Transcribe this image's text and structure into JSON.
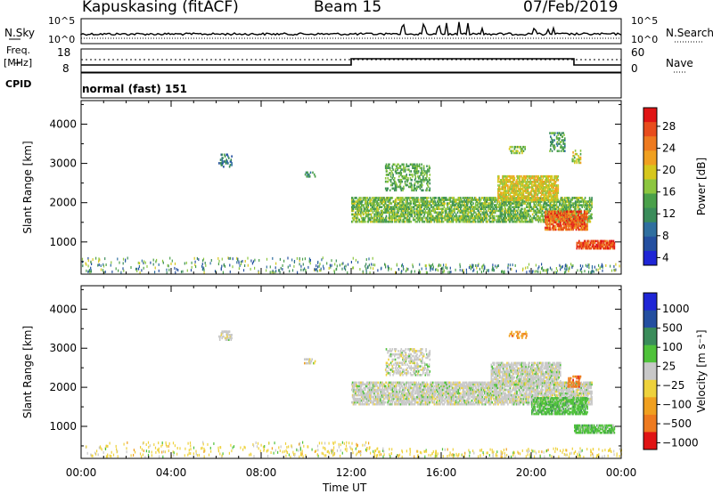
{
  "header": {
    "station": "Kapuskasing (fitACF)",
    "beam": "Beam 15",
    "date": "07/Feb/2019"
  },
  "noise_panel": {
    "left_label": "N.Sky",
    "right_label": "N.Search",
    "left_ticks": [
      "10^5",
      "10^0"
    ],
    "right_ticks": [
      "10^5",
      "10^0"
    ]
  },
  "freq_panel": {
    "left_label_1": "Freq.",
    "left_label_2": "[MHz]",
    "right_label": "Nave",
    "left_ticks": [
      "18",
      "8"
    ],
    "right_ticks": [
      "60",
      "0"
    ]
  },
  "cpid_panel": {
    "label": "CPID",
    "mode": "normal (fast) 151"
  },
  "colors": {
    "power": [
      "#1f26d6",
      "#244fa0",
      "#2f6f9f",
      "#3a8c5a",
      "#4aa04a",
      "#8cc63f",
      "#d6c71c",
      "#f0a020",
      "#ee7a1f",
      "#e84c1c",
      "#e01414"
    ],
    "velocity": [
      "#e01414",
      "#ee7a1f",
      "#f0a020",
      "#eed23c",
      "#c8c8c8",
      "#4fc23a",
      "#3a8c5a",
      "#244fa0",
      "#1f26d6"
    ]
  },
  "chart_data": [
    {
      "type": "heatmap",
      "quantity": "power",
      "ylabel": "Slant Range [km]",
      "ylim": [
        180,
        4600
      ],
      "yticks": [
        "1000",
        "2000",
        "3000",
        "4000"
      ],
      "xlabel": "Time UT",
      "xlim": [
        "00:00",
        "24:00"
      ],
      "xticks": [
        "00:00",
        "04:00",
        "08:00",
        "12:00",
        "16:00",
        "20:00",
        "00:00"
      ],
      "colorbar": {
        "label": "Power [dB]",
        "ticks": [
          "28",
          "24",
          "20",
          "16",
          "12",
          "8",
          "4"
        ],
        "range": [
          0,
          30
        ]
      },
      "regions": [
        {
          "t0": 6.1,
          "t1": 6.7,
          "r0": 2900,
          "r1": 3250,
          "level": 0.25,
          "density": 0.3
        },
        {
          "t0": 9.9,
          "t1": 10.4,
          "r0": 2650,
          "r1": 2800,
          "level": 0.3,
          "density": 0.3
        },
        {
          "t0": 12.0,
          "t1": 22.7,
          "r0": 1500,
          "r1": 2150,
          "level": 0.45,
          "density": 0.55
        },
        {
          "t0": 13.5,
          "t1": 15.5,
          "r0": 2300,
          "r1": 3000,
          "level": 0.4,
          "density": 0.3
        },
        {
          "t0": 18.5,
          "t1": 21.2,
          "r0": 2050,
          "r1": 2700,
          "level": 0.6,
          "density": 0.6
        },
        {
          "t0": 20.6,
          "t1": 22.5,
          "r0": 1300,
          "r1": 1800,
          "level": 0.85,
          "density": 0.6
        },
        {
          "t0": 22.0,
          "t1": 23.7,
          "r0": 820,
          "r1": 1050,
          "level": 0.9,
          "density": 0.7
        },
        {
          "t0": 19.0,
          "t1": 19.8,
          "r0": 3250,
          "r1": 3450,
          "level": 0.5,
          "density": 0.3
        },
        {
          "t0": 20.8,
          "t1": 21.5,
          "r0": 3300,
          "r1": 3800,
          "level": 0.35,
          "density": 0.3
        },
        {
          "t0": 21.8,
          "t1": 22.2,
          "r0": 3000,
          "r1": 3350,
          "level": 0.55,
          "density": 0.3
        }
      ]
    },
    {
      "type": "heatmap",
      "quantity": "velocity",
      "ylabel": "Slant Range [km]",
      "ylim": [
        180,
        4600
      ],
      "yticks": [
        "1000",
        "2000",
        "3000",
        "4000"
      ],
      "xlabel": "Time UT",
      "xlim": [
        "00:00",
        "24:00"
      ],
      "xticks": [
        "00:00",
        "04:00",
        "08:00",
        "12:00",
        "16:00",
        "20:00",
        "00:00"
      ],
      "colorbar": {
        "label": "Velocity [m s⁻¹]",
        "ticks": [
          "1000",
          "500",
          "100",
          "25",
          "−25",
          "−100",
          "−500",
          "−1000"
        ],
        "range": [
          -1000,
          1000
        ]
      },
      "regions": [
        {
          "t0": 6.1,
          "t1": 6.7,
          "r0": 3200,
          "r1": 3450,
          "level": 0.45,
          "density": 0.3
        },
        {
          "t0": 9.9,
          "t1": 10.4,
          "r0": 2600,
          "r1": 2750,
          "level": 0.45,
          "density": 0.3
        },
        {
          "t0": 12.0,
          "t1": 22.7,
          "r0": 1550,
          "r1": 2150,
          "level": 0.5,
          "density": 0.6
        },
        {
          "t0": 13.5,
          "t1": 15.5,
          "r0": 2300,
          "r1": 3000,
          "level": 0.48,
          "density": 0.3
        },
        {
          "t0": 18.2,
          "t1": 21.3,
          "r0": 2050,
          "r1": 2650,
          "level": 0.5,
          "density": 0.6
        },
        {
          "t0": 20.0,
          "t1": 22.5,
          "r0": 1300,
          "r1": 1750,
          "level": 0.62,
          "density": 0.6
        },
        {
          "t0": 21.9,
          "t1": 23.7,
          "r0": 820,
          "r1": 1050,
          "level": 0.62,
          "density": 0.7
        },
        {
          "t0": 19.0,
          "t1": 19.8,
          "r0": 3250,
          "r1": 3450,
          "level": 0.2,
          "density": 0.3
        },
        {
          "t0": 21.6,
          "t1": 22.2,
          "r0": 2000,
          "r1": 2300,
          "level": 0.15,
          "density": 0.4
        }
      ]
    }
  ]
}
